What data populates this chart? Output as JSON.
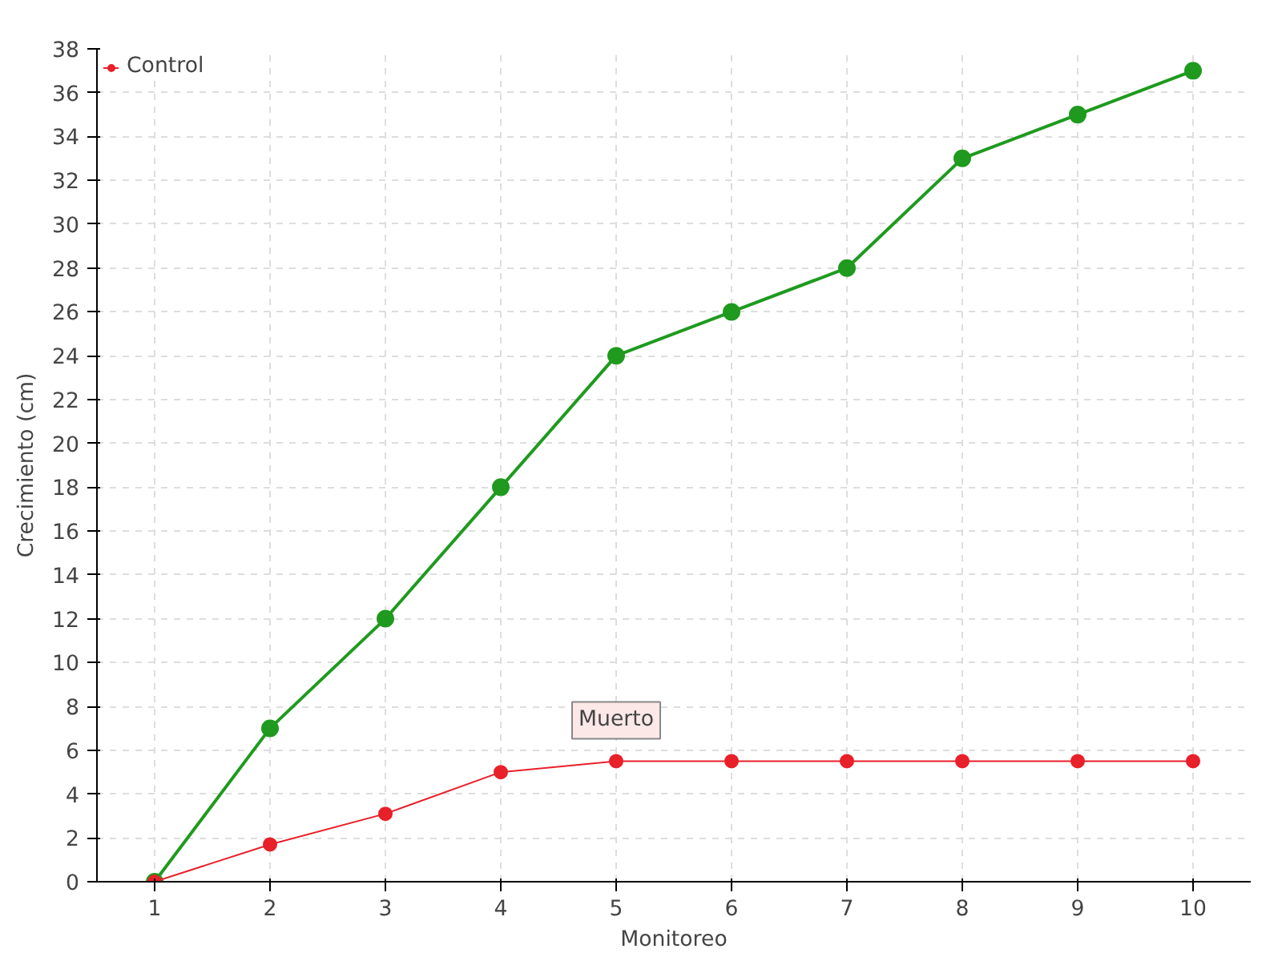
{
  "chart_data": {
    "type": "line",
    "xlabel": "Monitoreo",
    "ylabel": "Crecimiento (cm)",
    "x": [
      1,
      2,
      3,
      4,
      5,
      6,
      7,
      8,
      9,
      10
    ],
    "series": [
      {
        "color": "#1f9a1f",
        "values": [
          0,
          7,
          12,
          18,
          24,
          26,
          28,
          33,
          35,
          37
        ]
      },
      {
        "name": "Control",
        "color": "#e8202a",
        "values": [
          0,
          1.7,
          3.1,
          5,
          5.5,
          5.5,
          5.5,
          5.5,
          5.5,
          5.5
        ]
      }
    ],
    "xlim": [
      0.5,
      10.5
    ],
    "xticks": [
      1,
      2,
      3,
      4,
      5,
      6,
      7,
      8,
      9,
      10
    ],
    "ylim": [
      0,
      38
    ],
    "yticks": [
      0,
      2,
      4,
      6,
      8,
      10,
      12,
      14,
      16,
      18,
      20,
      22,
      24,
      26,
      28,
      30,
      32,
      34,
      36,
      38
    ],
    "annotations": [
      {
        "text": "Muerto",
        "x": 5,
        "y": 5.5
      }
    ],
    "grid": true,
    "legend": "top left",
    "marker": "circle",
    "line_style": "solid"
  }
}
